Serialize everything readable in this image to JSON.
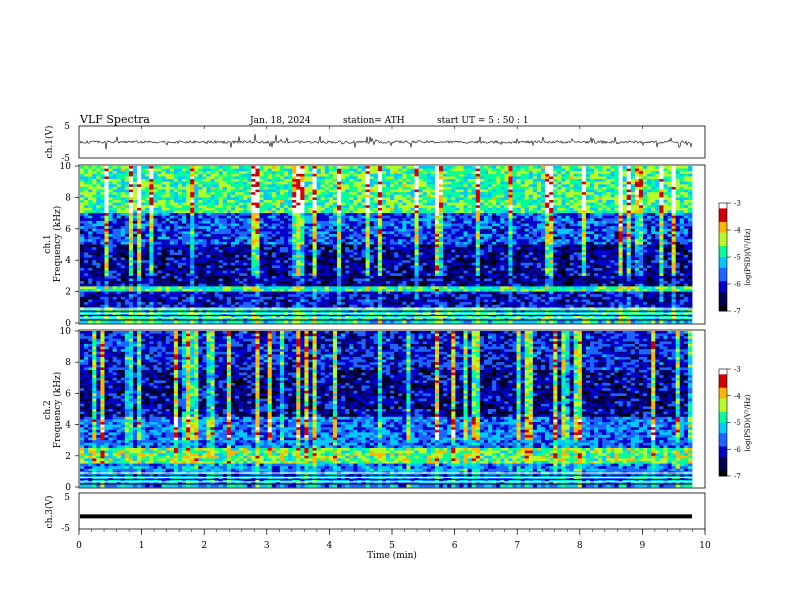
{
  "header": {
    "title": "VLF  Spectra",
    "date": "Jan. 18, 2024",
    "station": "station= ATH",
    "start_ut": "start  UT  =    5  : 50 : 1"
  },
  "colors": {
    "spectrum": [
      "#000000",
      "#000050",
      "#0000c8",
      "#1e64ff",
      "#00c8ff",
      "#00ff9a",
      "#b4ff28",
      "#ffb400",
      "#d20000",
      "#ffffff"
    ],
    "trace": "#000000"
  },
  "chart_data": [
    {
      "type": "line",
      "panel": "ch1-waveform",
      "ylabel": "ch.1(V)",
      "ylim": [
        -5,
        5
      ],
      "y_tick_labels": [
        "5",
        "-5"
      ],
      "xlim": [
        0,
        10
      ],
      "series": [
        {
          "values_note_free": true,
          "mean": 0,
          "noise_amplitude": 1.5
        }
      ]
    },
    {
      "type": "heatmap",
      "panel": "ch1-spectrogram",
      "ylabel": "ch.1\nFrequency (kHz)",
      "ylim": [
        0,
        10
      ],
      "y_tick_labels": [
        "0",
        "2",
        "4",
        "6",
        "8",
        "10"
      ],
      "xlim": [
        0,
        10
      ],
      "colorbar": {
        "label": "log(PSD)(V²/Hz)",
        "range": [
          -7,
          -3
        ],
        "tick_labels": [
          "-3",
          "-4",
          "-5",
          "-6",
          "-7"
        ]
      },
      "bands": [
        {
          "freq_khz": [
            0.0,
            1.0
          ],
          "level": -5.0
        },
        {
          "freq_khz": [
            1.0,
            2.0
          ],
          "level": -6.2
        },
        {
          "freq_khz": [
            2.0,
            2.4
          ],
          "level": -4.8
        },
        {
          "freq_khz": [
            2.4,
            5.0
          ],
          "level": -6.3
        },
        {
          "freq_khz": [
            5.0,
            7.0
          ],
          "level": -5.8
        },
        {
          "freq_khz": [
            7.0,
            10.0
          ],
          "level": -4.7
        }
      ]
    },
    {
      "type": "heatmap",
      "panel": "ch2-spectrogram",
      "ylabel": "ch.2\nFrequency (kHz)",
      "ylim": [
        0,
        10
      ],
      "y_tick_labels": [
        "0",
        "2",
        "4",
        "6",
        "8",
        "10"
      ],
      "xlim": [
        0,
        10
      ],
      "colorbar": {
        "label": "log(PSD)(V²/Hz)",
        "range": [
          -7,
          -3
        ],
        "tick_labels": [
          "-3",
          "-4",
          "-5",
          "-6",
          "-7"
        ]
      },
      "bands": [
        {
          "freq_khz": [
            0.0,
            1.5
          ],
          "level": -5.5
        },
        {
          "freq_khz": [
            1.5,
            2.5
          ],
          "level": -4.6
        },
        {
          "freq_khz": [
            2.5,
            4.5
          ],
          "level": -5.6
        },
        {
          "freq_khz": [
            4.5,
            7.5
          ],
          "level": -6.3
        },
        {
          "freq_khz": [
            7.5,
            10.0
          ],
          "level": -6.0
        }
      ]
    },
    {
      "type": "line",
      "panel": "ch3-waveform",
      "ylabel": "ch.3(V)",
      "ylim": [
        -5,
        5
      ],
      "y_tick_labels": [
        "5",
        "-5"
      ],
      "xlim": [
        0,
        10
      ],
      "xlabel": "Time  (min)",
      "x_tick_labels": [
        "0",
        "1",
        "2",
        "3",
        "4",
        "5",
        "6",
        "7",
        "8",
        "9",
        "10"
      ],
      "series": [
        {
          "constant": -1.5
        }
      ]
    }
  ]
}
